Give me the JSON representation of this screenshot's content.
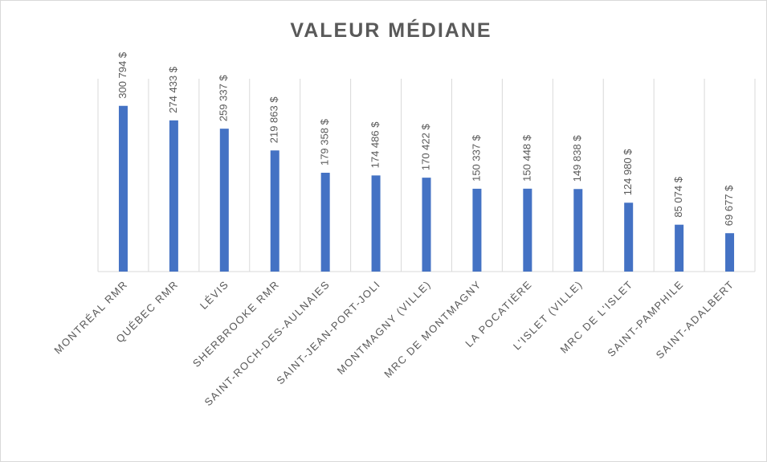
{
  "chart_data": {
    "type": "bar",
    "title": "VALEUR MÉDIANE",
    "categories": [
      "MONTRÉAL RMR",
      "QUÉBEC RMR",
      "LÉVIS",
      "SHERBROOKE RMR",
      "SAINT-ROCH-DES-AULNAIES",
      "SAINT-JEAN-PORT-JOLI",
      "MONTMAGNY (VILLE)",
      "MRC DE MONTMAGNY",
      "LA POCATIÈRE",
      "L'ISLET (VILLE)",
      "MRC DE L'ISLET",
      "SAINT-PAMPHILE",
      "SAINT-ADALBERT"
    ],
    "values": [
      300794,
      274433,
      259337,
      219863,
      179358,
      174486,
      170422,
      150337,
      150448,
      149838,
      124980,
      85074,
      69677
    ],
    "value_labels": [
      "300 794 $",
      "274 433 $",
      "259 337 $",
      "219 863 $",
      "179 358 $",
      "174 486 $",
      "170 422 $",
      "150 337 $",
      "150 448 $",
      "149 838 $",
      "124 980 $",
      "85 074 $",
      "69 677 $"
    ],
    "color": "#4472c4",
    "ylim": [
      0,
      350000
    ],
    "grid": true
  }
}
